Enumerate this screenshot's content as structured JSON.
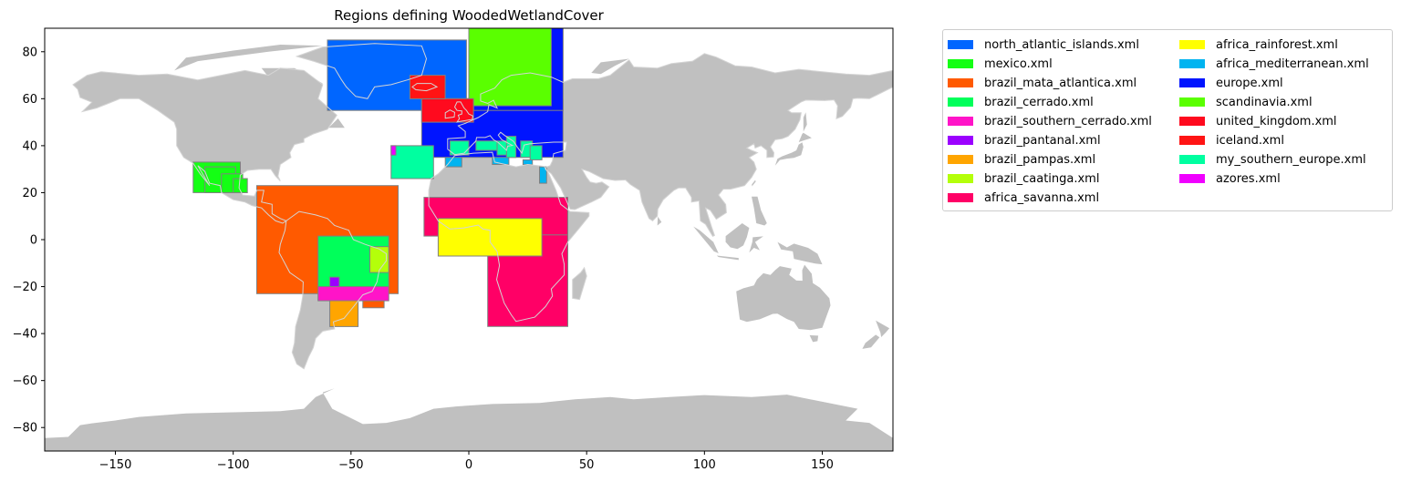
{
  "chart_data": {
    "type": "map",
    "title": "Regions defining WoodedWetlandCover",
    "xlim": [
      -180,
      180
    ],
    "ylim": [
      -90,
      90
    ],
    "xticks": [
      -150,
      -100,
      -50,
      0,
      50,
      100,
      150
    ],
    "yticks": [
      -80,
      -60,
      -40,
      -20,
      0,
      20,
      40,
      60,
      80
    ],
    "grid": false,
    "legend_position": "outside-right",
    "legend_columns": 2,
    "land_color": "#c0c0c0",
    "coast_outline_color": "#d4d4d4",
    "regions": [
      {
        "name": "north_atlantic_islands.xml",
        "color": "#0066ff",
        "boxes": [
          [
            -60,
            55,
            -1,
            85
          ]
        ]
      },
      {
        "name": "mexico.xml",
        "color": "#14ff14",
        "boxes": [
          [
            -117,
            20,
            -97,
            33
          ],
          [
            -112,
            20,
            -99,
            31
          ],
          [
            -105,
            20,
            -96,
            28
          ],
          [
            -100,
            20,
            -94,
            26
          ]
        ]
      },
      {
        "name": "brazil_mata_atlantica.xml",
        "color": "#ff5a00",
        "boxes": [
          [
            -90,
            -23,
            -30,
            23
          ],
          [
            -45,
            -29,
            -36,
            -23
          ]
        ]
      },
      {
        "name": "brazil_cerrado.xml",
        "color": "#00ff5a",
        "boxes": [
          [
            -64,
            -20,
            -34,
            1.5
          ]
        ]
      },
      {
        "name": "brazil_southern_cerrado.xml",
        "color": "#ff14c8",
        "boxes": [
          [
            -64,
            -26,
            -34,
            -20
          ]
        ]
      },
      {
        "name": "brazil_pantanal.xml",
        "color": "#9b00ff",
        "boxes": [
          [
            -59,
            -20,
            -55,
            -16
          ]
        ]
      },
      {
        "name": "brazil_pampas.xml",
        "color": "#ffa500",
        "boxes": [
          [
            -59,
            -37,
            -47,
            -26
          ]
        ]
      },
      {
        "name": "brazil_caatinga.xml",
        "color": "#b4ff0a",
        "boxes": [
          [
            -42,
            -14,
            -34,
            -3
          ]
        ]
      },
      {
        "name": "africa_savanna.xml",
        "color": "#ff0066",
        "boxes": [
          [
            -19,
            1.5,
            42,
            18
          ],
          [
            8,
            -37,
            42,
            2
          ]
        ]
      },
      {
        "name": "africa_rainforest.xml",
        "color": "#ffff00",
        "boxes": [
          [
            -13,
            -7,
            31,
            9
          ]
        ]
      },
      {
        "name": "africa_mediterranean.xml",
        "color": "#00b4f0",
        "boxes": [
          [
            -10,
            31,
            -3,
            36
          ],
          [
            10,
            32,
            17,
            38
          ],
          [
            30,
            24,
            33,
            31
          ],
          [
            23,
            32,
            27,
            34
          ]
        ]
      },
      {
        "name": "europe.xml",
        "color": "#0014ff",
        "boxes": [
          [
            -20,
            35,
            40,
            60
          ],
          [
            2,
            55,
            40,
            90
          ]
        ]
      },
      {
        "name": "scandinavia.xml",
        "color": "#5aff00",
        "boxes": [
          [
            0,
            57,
            35,
            90
          ]
        ]
      },
      {
        "name": "united_kingdom.xml",
        "color": "#ff0a1e",
        "boxes": [
          [
            -20,
            50,
            2,
            60
          ]
        ]
      },
      {
        "name": "iceland.xml",
        "color": "#ff1414",
        "boxes": [
          [
            -25,
            60,
            -10,
            70
          ]
        ]
      },
      {
        "name": "my_southern_europe.xml",
        "color": "#00ffa0",
        "boxes": [
          [
            -33,
            26,
            -15,
            40
          ],
          [
            -8,
            36,
            0,
            42
          ],
          [
            3,
            38,
            12,
            42
          ],
          [
            12,
            36,
            19,
            42
          ],
          [
            16,
            35,
            20,
            44
          ],
          [
            22,
            35,
            27,
            42
          ],
          [
            26,
            34,
            31,
            40
          ]
        ]
      },
      {
        "name": "azores.xml",
        "color": "#f000ff",
        "boxes": [
          [
            -33,
            36,
            -31,
            40
          ]
        ]
      }
    ]
  }
}
